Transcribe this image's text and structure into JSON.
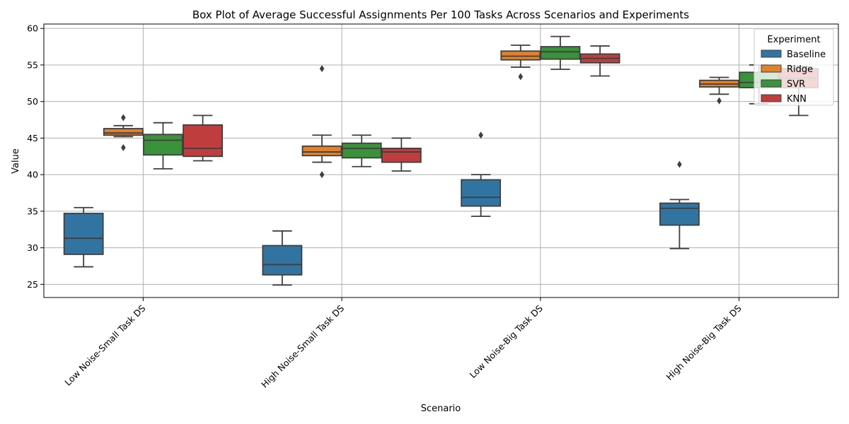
{
  "chart_data": {
    "type": "box",
    "title": "Box Plot of Average Successful Assignments Per 100 Tasks Across Scenarios and Experiments",
    "xlabel": "Scenario",
    "ylabel": "Value",
    "categories": [
      "Low Noise-Small Task DS",
      "High Noise-Small Task DS",
      "Low Noise-Big Task DS",
      "High Noise-Big Task DS"
    ],
    "yticks": [
      25,
      30,
      35,
      40,
      45,
      50,
      55,
      60
    ],
    "ylim": [
      23.2,
      60.6
    ],
    "grid": true,
    "legend": {
      "title": "Experiment",
      "placement": "top-right"
    },
    "series": [
      {
        "name": "Baseline",
        "color": "#3274a1",
        "boxes": [
          {
            "whislo": 27.4,
            "q1": 29.1,
            "med": 31.3,
            "q3": 34.7,
            "whishi": 35.5,
            "fliers": []
          },
          {
            "whislo": 24.9,
            "q1": 26.3,
            "med": 27.7,
            "q3": 30.3,
            "whishi": 32.3,
            "fliers": []
          },
          {
            "whislo": 34.3,
            "q1": 35.7,
            "med": 36.9,
            "q3": 39.3,
            "whishi": 40.0,
            "fliers": [
              45.4
            ]
          },
          {
            "whislo": 29.9,
            "q1": 33.1,
            "med": 35.4,
            "q3": 36.1,
            "whishi": 36.6,
            "fliers": [
              41.4
            ]
          }
        ]
      },
      {
        "name": "Ridge",
        "color": "#e1812c",
        "boxes": [
          {
            "whislo": 45.2,
            "q1": 45.4,
            "med": 45.7,
            "q3": 46.3,
            "whishi": 46.7,
            "fliers": [
              43.7,
              47.8
            ]
          },
          {
            "whislo": 41.7,
            "q1": 42.6,
            "med": 43.1,
            "q3": 43.9,
            "whishi": 45.4,
            "fliers": [
              40.0,
              54.5
            ]
          },
          {
            "whislo": 54.7,
            "q1": 55.7,
            "med": 56.2,
            "q3": 56.9,
            "whishi": 57.7,
            "fliers": [
              53.4
            ]
          },
          {
            "whislo": 51.0,
            "q1": 52.0,
            "med": 52.4,
            "q3": 52.9,
            "whishi": 53.3,
            "fliers": [
              50.1
            ]
          }
        ]
      },
      {
        "name": "SVR",
        "color": "#3a923a",
        "boxes": [
          {
            "whislo": 40.8,
            "q1": 42.7,
            "med": 44.7,
            "q3": 45.5,
            "whishi": 47.1,
            "fliers": []
          },
          {
            "whislo": 41.1,
            "q1": 42.3,
            "med": 43.6,
            "q3": 44.3,
            "whishi": 45.4,
            "fliers": []
          },
          {
            "whislo": 54.4,
            "q1": 55.8,
            "med": 56.8,
            "q3": 57.5,
            "whishi": 58.9,
            "fliers": []
          },
          {
            "whislo": 49.7,
            "q1": 51.9,
            "med": 52.6,
            "q3": 54.0,
            "whishi": 55.0,
            "fliers": []
          }
        ]
      },
      {
        "name": "KNN",
        "color": "#c03d3e",
        "boxes": [
          {
            "whislo": 41.9,
            "q1": 42.5,
            "med": 43.6,
            "q3": 46.8,
            "whishi": 48.1,
            "fliers": []
          },
          {
            "whislo": 40.5,
            "q1": 41.7,
            "med": 43.1,
            "q3": 43.6,
            "whishi": 45.0,
            "fliers": []
          },
          {
            "whislo": 53.5,
            "q1": 55.3,
            "med": 55.9,
            "q3": 56.5,
            "whishi": 57.6,
            "fliers": []
          },
          {
            "whislo": 48.1,
            "q1": 51.9,
            "med": 53.2,
            "q3": 54.5,
            "whishi": 54.8,
            "fliers": []
          }
        ]
      }
    ]
  }
}
